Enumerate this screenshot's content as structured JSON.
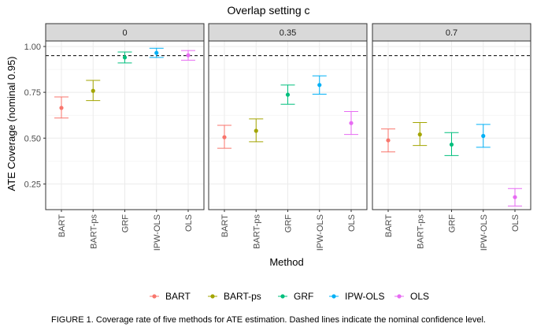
{
  "chart_data": {
    "type": "scatter",
    "title": "Overlap setting c",
    "xlabel": "Method",
    "ylabel": "ATE Coverage (nominal 0.95)",
    "ylim": [
      0.11,
      1.03
    ],
    "yticks": [
      "0.25",
      "0.50",
      "0.75",
      "1.00"
    ],
    "ytick_values": [
      0.25,
      0.5,
      0.75,
      1.0
    ],
    "reference_line": 0.95,
    "categories": [
      "BART",
      "BART-ps",
      "GRF",
      "IPW-OLS",
      "OLS"
    ],
    "colors": [
      "#F8766D",
      "#A3A500",
      "#00BF7D",
      "#00B0F6",
      "#E76BF3"
    ],
    "legend_position": "bottom",
    "legend": [
      "BART",
      "BART-ps",
      "GRF",
      "IPW-OLS",
      "OLS"
    ],
    "grid": true,
    "panels": [
      {
        "label": "0",
        "points": [
          {
            "method": "BART",
            "value": 0.665,
            "lower": 0.61,
            "upper": 0.725
          },
          {
            "method": "BART-ps",
            "value": 0.758,
            "lower": 0.705,
            "upper": 0.815
          },
          {
            "method": "GRF",
            "value": 0.94,
            "lower": 0.91,
            "upper": 0.97
          },
          {
            "method": "IPW-OLS",
            "value": 0.965,
            "lower": 0.94,
            "upper": 0.99
          },
          {
            "method": "OLS",
            "value": 0.952,
            "lower": 0.925,
            "upper": 0.978
          }
        ]
      },
      {
        "label": "0.35",
        "points": [
          {
            "method": "BART",
            "value": 0.505,
            "lower": 0.445,
            "upper": 0.57
          },
          {
            "method": "BART-ps",
            "value": 0.54,
            "lower": 0.48,
            "upper": 0.605
          },
          {
            "method": "GRF",
            "value": 0.737,
            "lower": 0.685,
            "upper": 0.79
          },
          {
            "method": "IPW-OLS",
            "value": 0.79,
            "lower": 0.74,
            "upper": 0.84
          },
          {
            "method": "OLS",
            "value": 0.582,
            "lower": 0.52,
            "upper": 0.645
          }
        ]
      },
      {
        "label": "0.7",
        "points": [
          {
            "method": "BART",
            "value": 0.488,
            "lower": 0.425,
            "upper": 0.55
          },
          {
            "method": "BART-ps",
            "value": 0.52,
            "lower": 0.46,
            "upper": 0.585
          },
          {
            "method": "GRF",
            "value": 0.465,
            "lower": 0.405,
            "upper": 0.53
          },
          {
            "method": "IPW-OLS",
            "value": 0.512,
            "lower": 0.45,
            "upper": 0.575
          },
          {
            "method": "OLS",
            "value": 0.178,
            "lower": 0.13,
            "upper": 0.225
          }
        ]
      }
    ]
  },
  "caption": "FIGURE 1. Coverage rate of five methods for ATE estimation. Dashed lines indicate the nominal confidence level."
}
